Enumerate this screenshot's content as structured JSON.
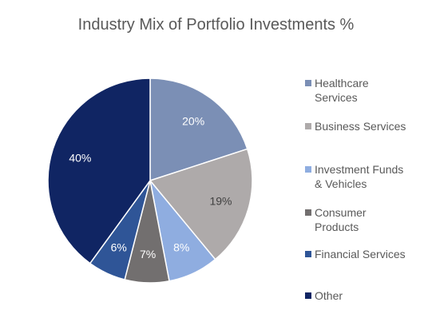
{
  "chart_data": {
    "type": "pie",
    "title": "Industry Mix of Portfolio Investments %",
    "legend_position": "right",
    "start_angle_deg": 0,
    "direction": "clockwise",
    "slices": [
      {
        "name": "Healthcare\nServices",
        "value": 20,
        "label": "20%",
        "color": "#7b8fb5",
        "label_color": "#ffffff"
      },
      {
        "name": "Business Services",
        "value": 19,
        "label": "19%",
        "color": "#aeaaaa",
        "label_color": "#404040"
      },
      {
        "name": "Investment Funds\n& Vehicles",
        "value": 8,
        "label": "8%",
        "color": "#8fade0",
        "label_color": "#ffffff"
      },
      {
        "name": "Consumer\nProducts",
        "value": 7,
        "label": "7%",
        "color": "#726f6f",
        "label_color": "#ffffff"
      },
      {
        "name": "Financial Services",
        "value": 6,
        "label": "6%",
        "color": "#2f5597",
        "label_color": "#ffffff"
      },
      {
        "name": "Other",
        "value": 40,
        "label": "40%",
        "color": "#102563",
        "label_color": "#ffffff"
      }
    ]
  }
}
